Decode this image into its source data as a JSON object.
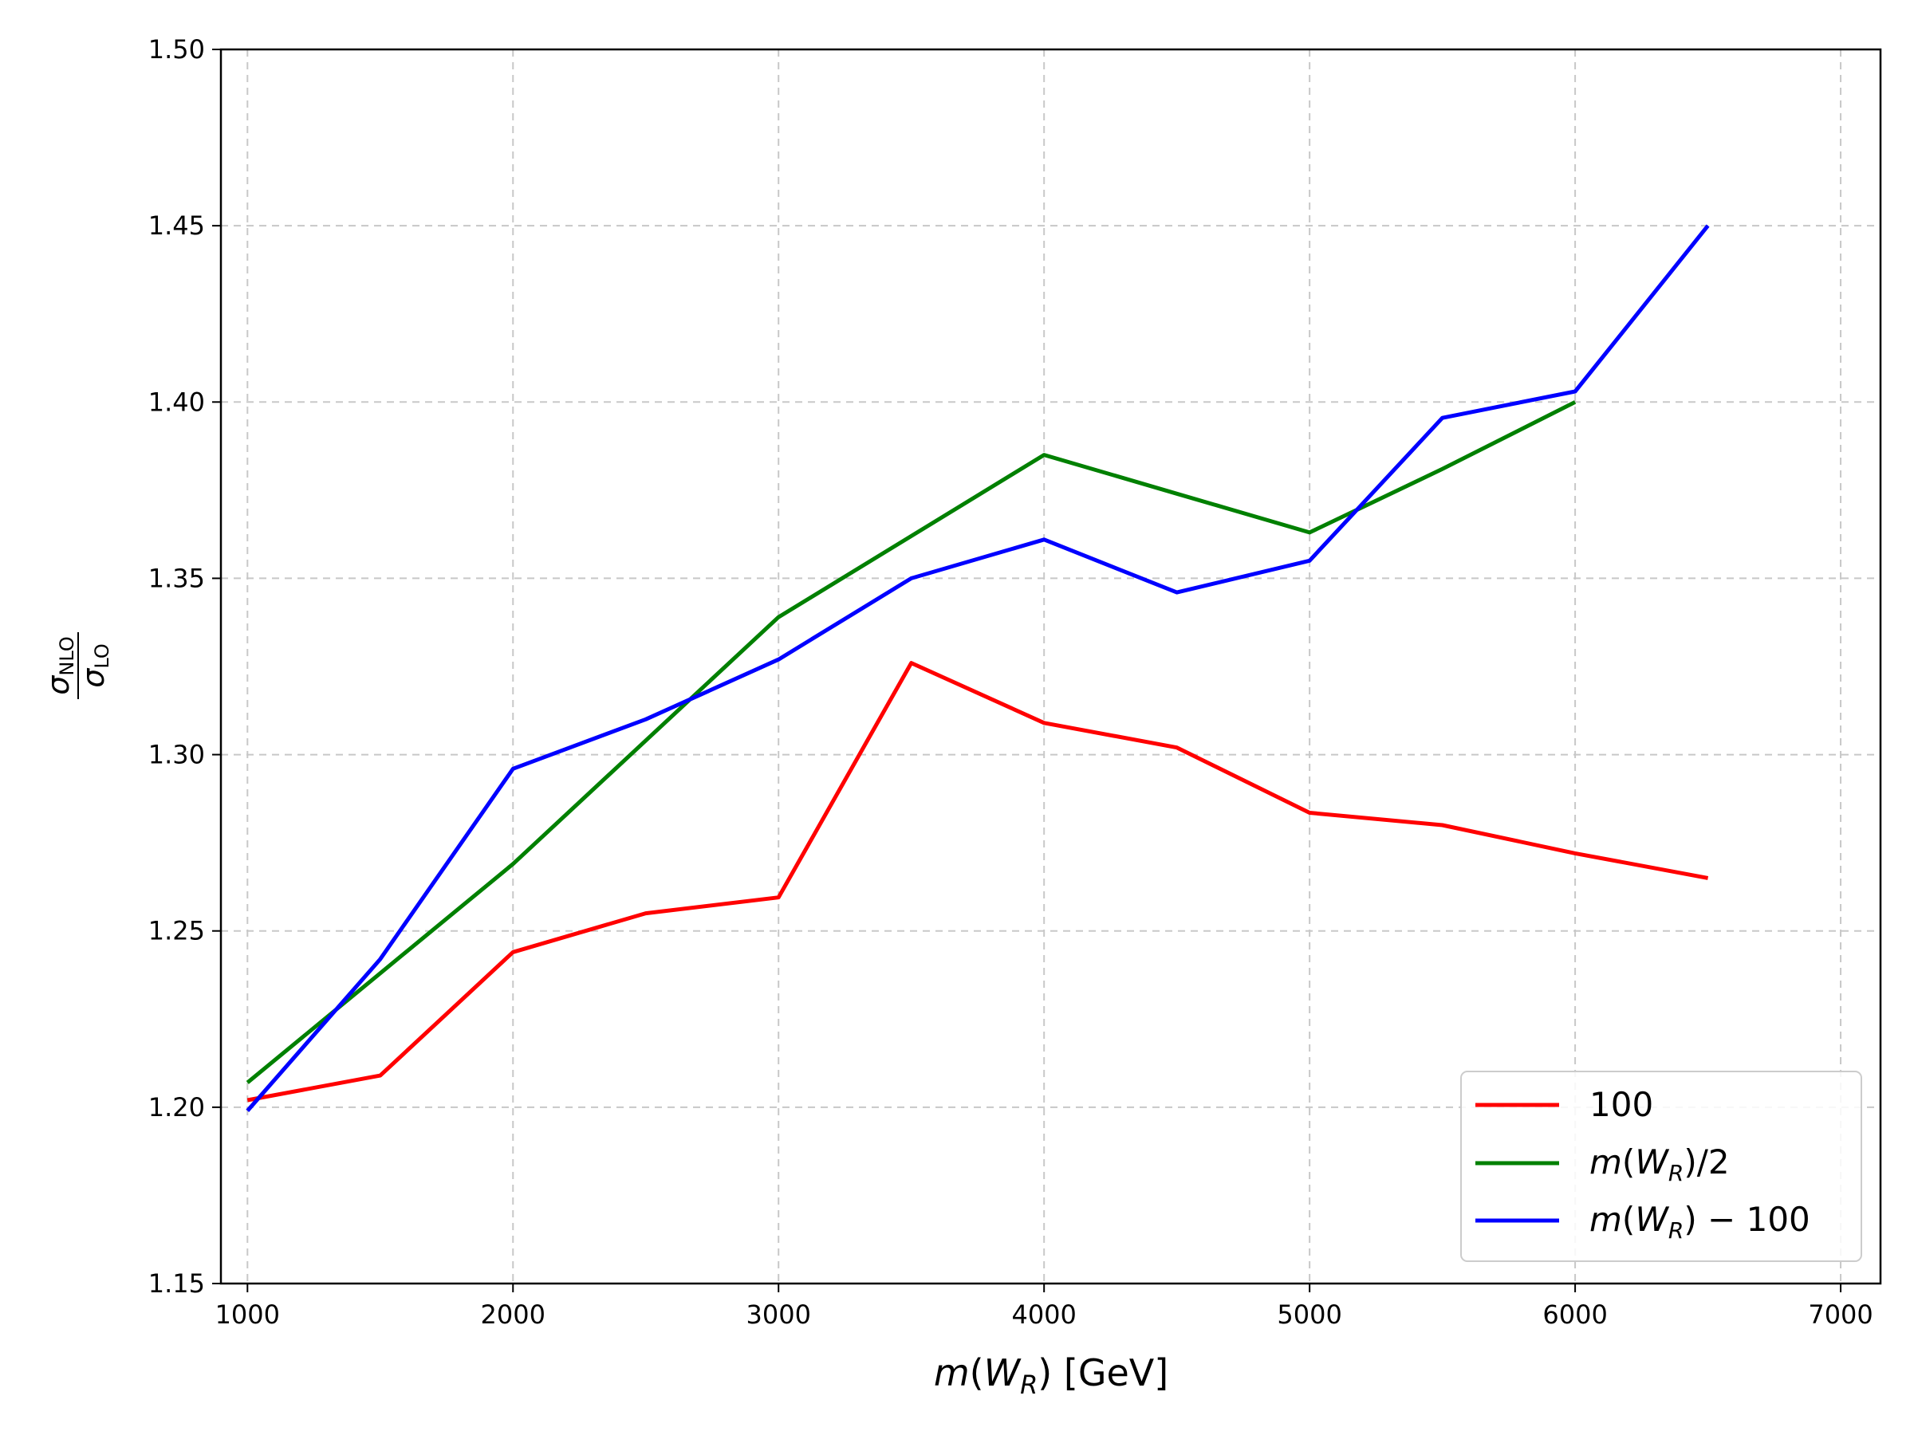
{
  "chart_data": {
    "type": "line",
    "xlabel": {
      "italic": "m",
      "open": "(",
      "sym": "W",
      "sub": "R",
      "close": ")",
      "unit": " [GeV]"
    },
    "ylabel": {
      "num_sym": "σ",
      "num_sub": "NLO",
      "den_sym": "σ",
      "den_sub": "LO"
    },
    "xlim": [
      900,
      7150
    ],
    "ylim": [
      1.15,
      1.5
    ],
    "xticks": [
      "1000",
      "2000",
      "3000",
      "4000",
      "5000",
      "6000",
      "7000"
    ],
    "yticks": [
      "1.15",
      "1.20",
      "1.25",
      "1.30",
      "1.35",
      "1.40",
      "1.45",
      "1.50"
    ],
    "grid": true,
    "legend_position": "bottom-right",
    "series": [
      {
        "name": "100",
        "color": "#ff0000",
        "x": [
          1000,
          1500,
          2000,
          2500,
          3000,
          3500,
          4000,
          4500,
          5000,
          5500,
          6000,
          6500
        ],
        "y": [
          1.202,
          1.209,
          1.244,
          1.255,
          1.2595,
          1.326,
          1.309,
          1.302,
          1.2835,
          1.28,
          1.272,
          1.265
        ]
      },
      {
        "name_parts": {
          "italic": "m",
          "open": "(",
          "sym": "W",
          "sub": "R",
          "close": ")/2"
        },
        "color": "#008000",
        "x": [
          1000,
          1500,
          2000,
          2500,
          3000,
          3500,
          4000,
          4500,
          5000,
          5500,
          6000
        ],
        "y": [
          1.207,
          1.238,
          1.269,
          1.304,
          1.339,
          1.362,
          1.385,
          1.374,
          1.363,
          1.381,
          1.4
        ]
      },
      {
        "name_parts": {
          "italic": "m",
          "open": "(",
          "sym": "W",
          "sub": "R",
          "close": ") − 100"
        },
        "color": "#0000ff",
        "x": [
          1000,
          1500,
          2000,
          2500,
          3000,
          3500,
          4000,
          4500,
          5000,
          5500,
          6000,
          6500
        ],
        "y": [
          1.199,
          1.242,
          1.296,
          1.31,
          1.327,
          1.35,
          1.361,
          1.346,
          1.355,
          1.3955,
          1.403,
          1.45
        ]
      }
    ]
  }
}
